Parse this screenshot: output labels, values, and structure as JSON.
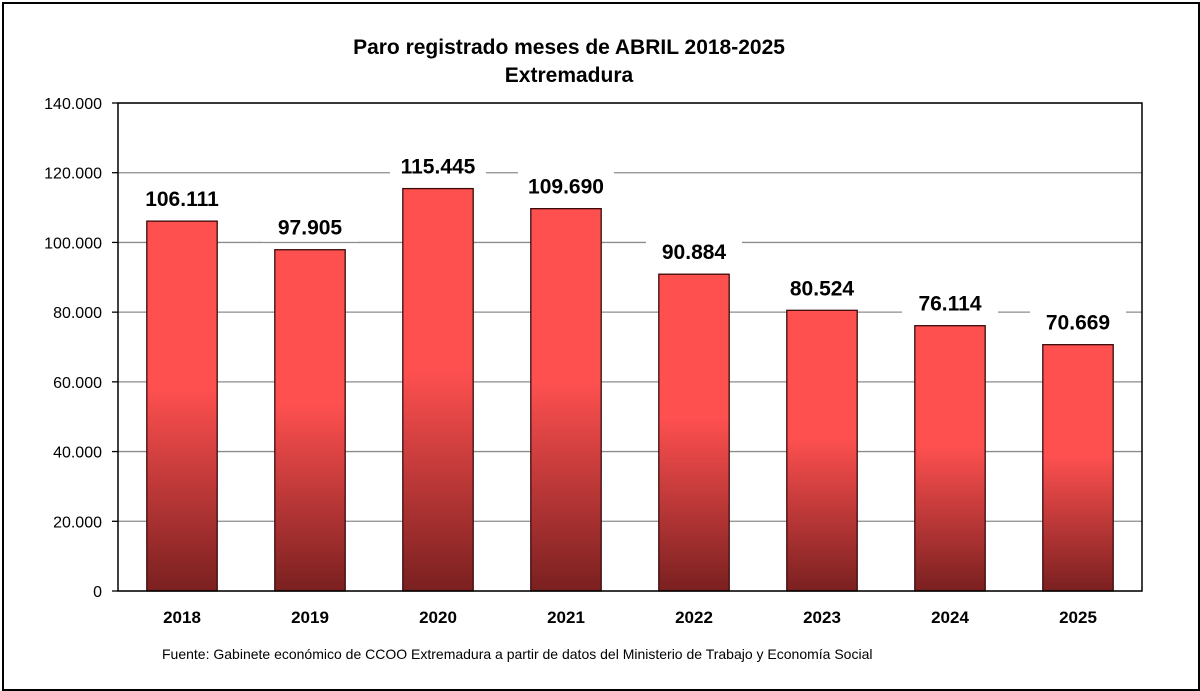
{
  "chart_data": {
    "type": "bar",
    "title": "Paro registrado meses de ABRIL 2018-2025",
    "subtitle": "Extremadura",
    "categories": [
      "2018",
      "2019",
      "2020",
      "2021",
      "2022",
      "2023",
      "2024",
      "2025"
    ],
    "values": [
      106111,
      97905,
      115445,
      109690,
      90884,
      80524,
      76114,
      70669
    ],
    "value_labels": [
      "106.111",
      "97.905",
      "115.445",
      "109.690",
      "90.884",
      "80.524",
      "76.114",
      "70.669"
    ],
    "ylim": [
      0,
      140000
    ],
    "yticks": [
      0,
      20000,
      40000,
      60000,
      80000,
      100000,
      120000,
      140000
    ],
    "ytick_labels": [
      "0",
      "20.000",
      "40.000",
      "60.000",
      "80.000",
      "100.000",
      "120.000",
      "140.000"
    ],
    "xlabel": "",
    "ylabel": "",
    "grid": true,
    "legend": "none",
    "bar_color_top": "#ff5050",
    "bar_color_bottom": "#7a2020",
    "source": "Fuente: Gabinete económico de CCOO Extremadura a partir de datos del Ministerio de Trabajo y Economía Social"
  }
}
